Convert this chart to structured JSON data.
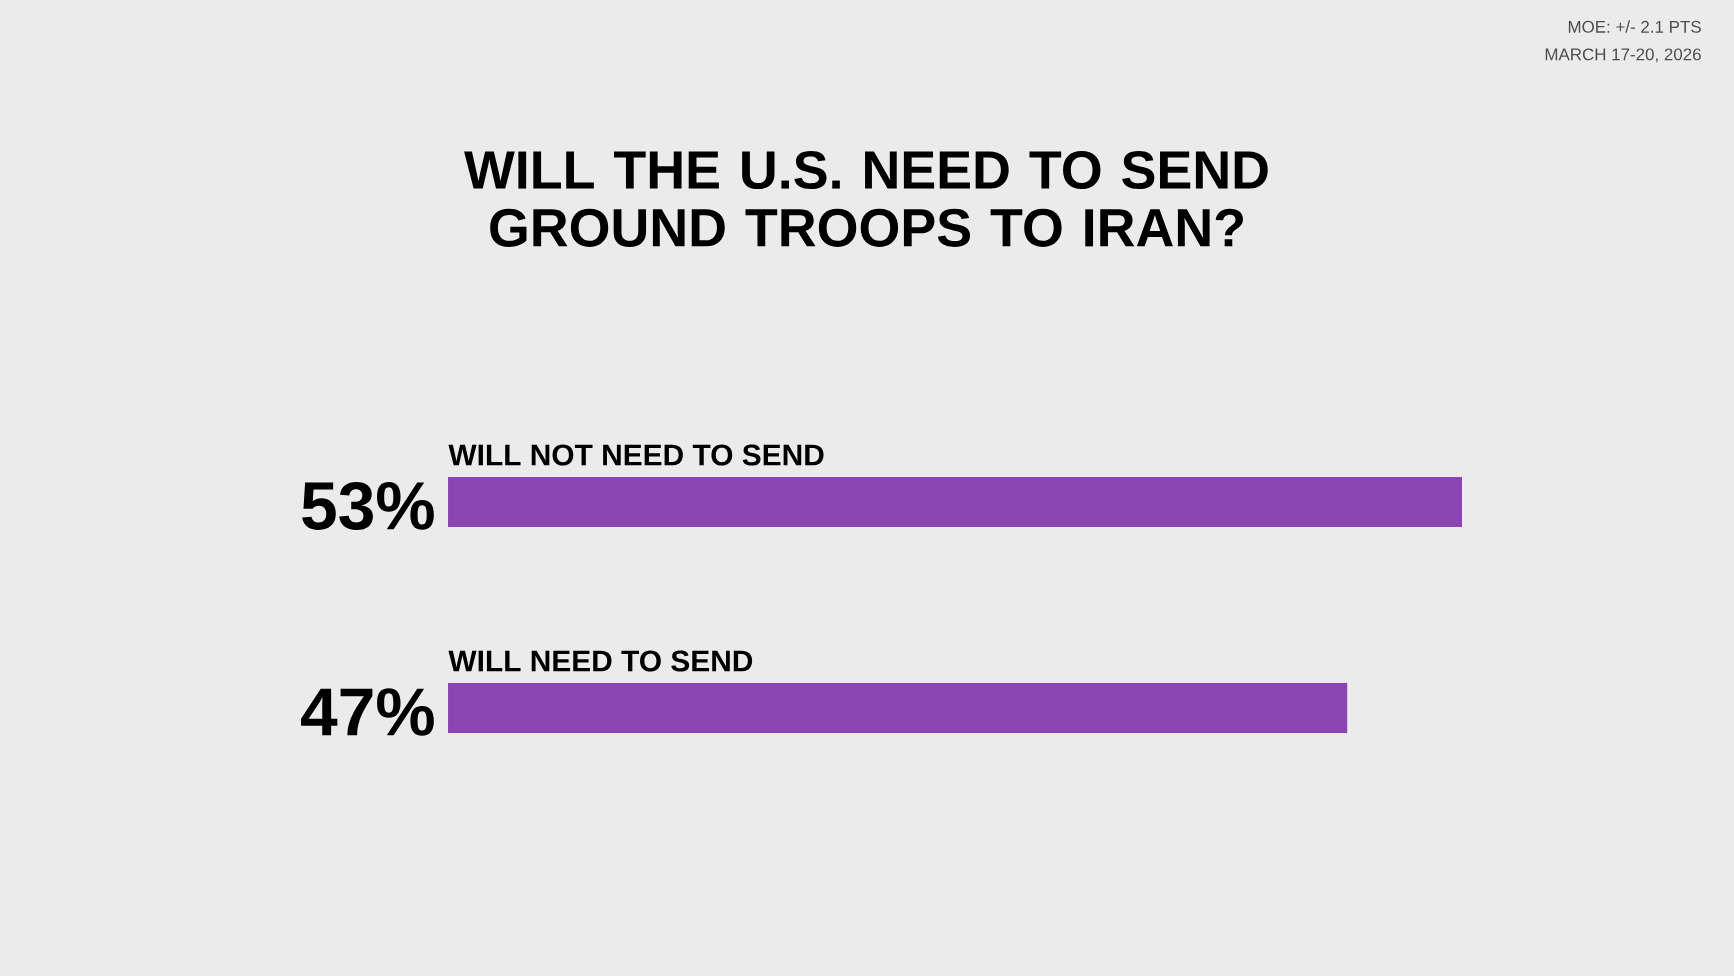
{
  "chart_data": {
    "type": "bar",
    "orientation": "horizontal",
    "title": "WILL THE U.S. NEED TO SEND GROUND TROOPS TO IRAN?",
    "categories": [
      "WILL NOT NEED TO SEND",
      "WILL NEED TO SEND"
    ],
    "values": [
      53,
      47
    ],
    "value_labels": [
      "53%",
      "47%"
    ],
    "color": "#8a45b3",
    "annotations": [
      "MOE: +/- 2.1 PTS",
      "MARCH 17-20, 2026"
    ]
  }
}
